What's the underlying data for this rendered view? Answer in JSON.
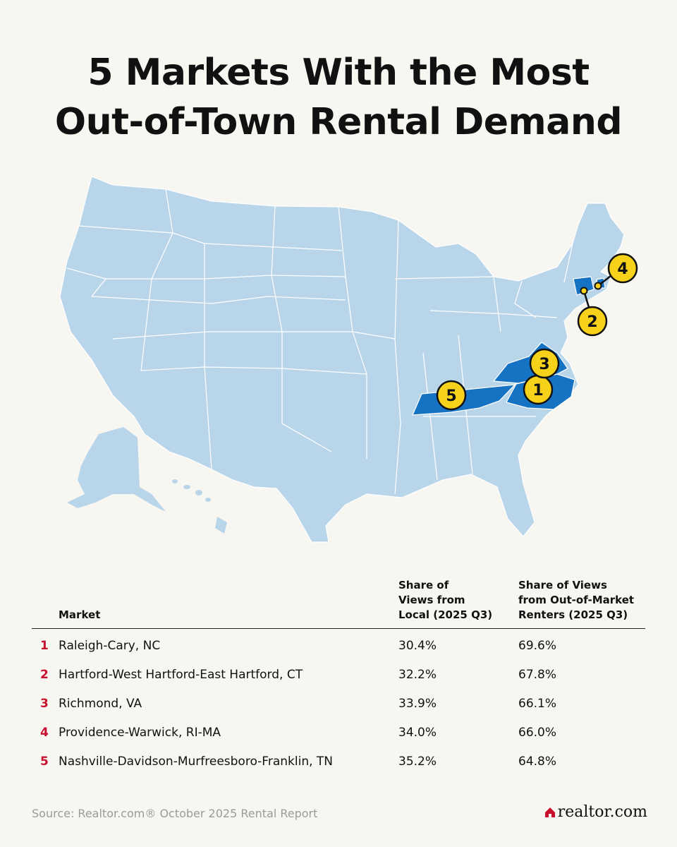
{
  "title": {
    "line1": "5 Markets With the Most",
    "line2": "Out-of-Town Rental Demand"
  },
  "map": {
    "base_color": "#b9d5ea",
    "highlight_color": "#1673c4",
    "marker_color": "#f7d21b",
    "markers": [
      {
        "label": "1"
      },
      {
        "label": "2"
      },
      {
        "label": "3"
      },
      {
        "label": "4"
      },
      {
        "label": "5"
      }
    ]
  },
  "table": {
    "headers": {
      "market": "Market",
      "local": "Share of\nViews from\nLocal (2025 Q3)",
      "out": "Share of Views\nfrom Out-of-Market\nRenters (2025 Q3)"
    },
    "rows": [
      {
        "rank": "1",
        "market": "Raleigh-Cary, NC",
        "local": "30.4%",
        "out": "69.6%"
      },
      {
        "rank": "2",
        "market": "Hartford-West Hartford-East Hartford, CT",
        "local": "32.2%",
        "out": "67.8%"
      },
      {
        "rank": "3",
        "market": "Richmond, VA",
        "local": "33.9%",
        "out": "66.1%"
      },
      {
        "rank": "4",
        "market": "Providence-Warwick, RI-MA",
        "local": "34.0%",
        "out": "66.0%"
      },
      {
        "rank": "5",
        "market": "Nashville-Davidson-Murfreesboro-Franklin, TN",
        "local": "35.2%",
        "out": "64.8%"
      }
    ]
  },
  "source": "Source: Realtor.com® October 2025 Rental Report",
  "logo": {
    "text": "realtor.com",
    "color": "#c8102e"
  }
}
